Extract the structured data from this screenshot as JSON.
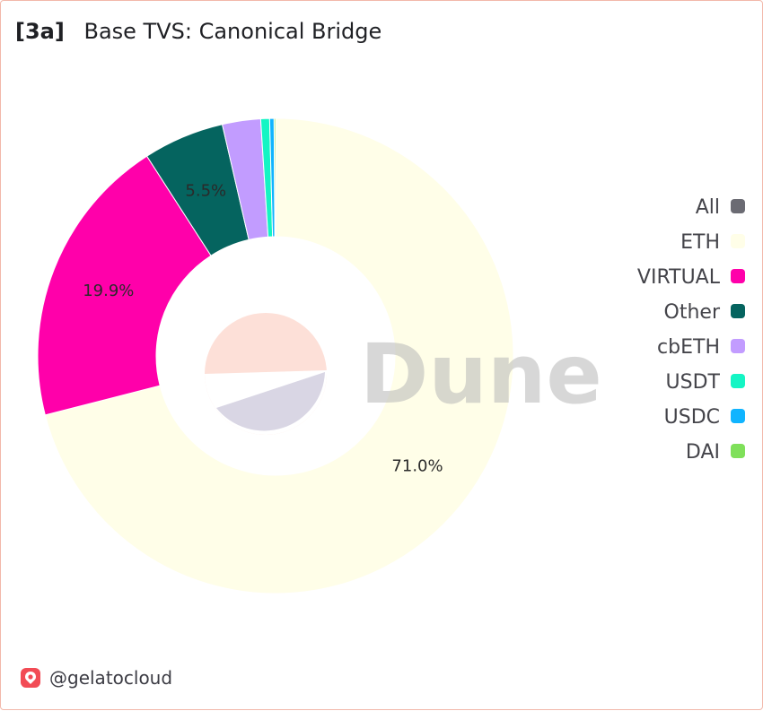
{
  "header": {
    "tag": "[3a]",
    "title": "Base TVS: Canonical Bridge"
  },
  "watermark": "Dune",
  "footer": {
    "handle": "@gelatocloud",
    "logo_icon": "gelato-logo-icon"
  },
  "chart_data": {
    "type": "pie",
    "title": "Base TVS: Canonical Bridge",
    "legend_position": "right",
    "legend": [
      {
        "name": "All",
        "color": "#6b6b73"
      },
      {
        "name": "ETH",
        "color": "#fffee8"
      },
      {
        "name": "VIRTUAL",
        "color": "#ff00aa"
      },
      {
        "name": "Other",
        "color": "#05645f"
      },
      {
        "name": "cbETH",
        "color": "#c29cff"
      },
      {
        "name": "USDT",
        "color": "#14f5c4"
      },
      {
        "name": "USDC",
        "color": "#10b4ff"
      },
      {
        "name": "DAI",
        "color": "#7fe05a"
      }
    ],
    "slices": [
      {
        "name": "ETH",
        "value": 71.0,
        "label": "71.0%",
        "color": "#fffee8"
      },
      {
        "name": "VIRTUAL",
        "value": 19.9,
        "label": "19.9%",
        "color": "#ff00aa"
      },
      {
        "name": "Other",
        "value": 5.5,
        "label": "5.5%",
        "color": "#05645f"
      },
      {
        "name": "cbETH",
        "value": 2.6,
        "label": "",
        "color": "#c29cff"
      },
      {
        "name": "USDT",
        "value": 0.6,
        "label": "",
        "color": "#14f5c4"
      },
      {
        "name": "USDC",
        "value": 0.3,
        "label": "",
        "color": "#10b4ff"
      },
      {
        "name": "DAI",
        "value": 0.1,
        "label": "",
        "color": "#7fe05a"
      }
    ]
  }
}
